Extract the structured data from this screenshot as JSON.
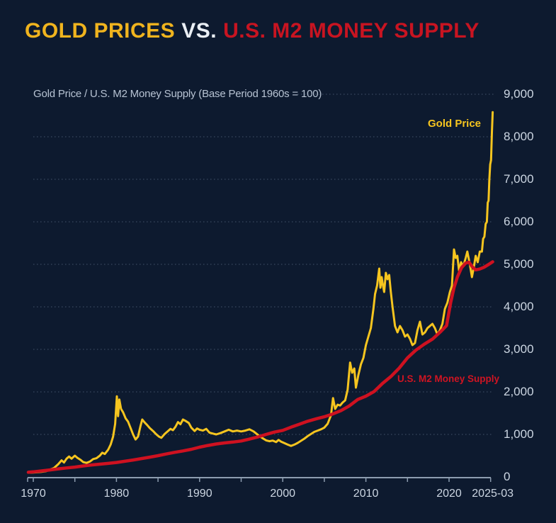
{
  "header": {
    "title_gold": "GOLD PRICES",
    "title_vs": "VS.",
    "title_m2": "U.S. M2 MONEY SUPPLY"
  },
  "colors": {
    "background": "#0d1a2f",
    "title_gold": "#f0b41e",
    "title_vs": "#e9eef4",
    "title_red": "#c81421",
    "gold_line": "#f6c51f",
    "m2_line": "#ce1120",
    "gridline": "#44546b",
    "axis": "#8d9db0",
    "tick_label": "#ccd6e2",
    "subtitle_text": "#b7c3d3"
  },
  "chart_data": {
    "type": "line",
    "title": "GOLD PRICES VS. U.S. M2 MONEY SUPPLY",
    "subtitle": "Gold Price / U.S. M2 Money Supply (Base Period 1960s = 100)",
    "xlim": [
      1969.3,
      2025.3
    ],
    "ylim": [
      0,
      9000
    ],
    "grid": "horizontal dotted",
    "legend": "inline labels near lines",
    "y_ticks": [
      0,
      1000,
      2000,
      3000,
      4000,
      5000,
      6000,
      7000,
      8000,
      9000
    ],
    "x_minor_tick_years": [
      1970,
      1975,
      1980,
      1985,
      1990,
      1995,
      2000,
      2005,
      2010,
      2015,
      2020,
      2025
    ],
    "x_tick_labels": [
      {
        "x": 1970,
        "label": "1970"
      },
      {
        "x": 1980,
        "label": "1980"
      },
      {
        "x": 1990,
        "label": "1990"
      },
      {
        "x": 2000,
        "label": "2000"
      },
      {
        "x": 2010,
        "label": "2010"
      },
      {
        "x": 2020,
        "label": "2020"
      },
      {
        "x": 2025.25,
        "label": "2025-03"
      }
    ],
    "series": [
      {
        "name": "Gold Price",
        "color": "#f6c51f",
        "points": [
          [
            1969.4,
            100
          ],
          [
            1970,
            105
          ],
          [
            1970.5,
            112
          ],
          [
            1971,
            120
          ],
          [
            1971.5,
            135
          ],
          [
            1972,
            170
          ],
          [
            1972.5,
            210
          ],
          [
            1973,
            300
          ],
          [
            1973.4,
            390
          ],
          [
            1973.7,
            340
          ],
          [
            1974,
            430
          ],
          [
            1974.3,
            480
          ],
          [
            1974.6,
            430
          ],
          [
            1975,
            500
          ],
          [
            1975.3,
            450
          ],
          [
            1975.7,
            400
          ],
          [
            1976,
            350
          ],
          [
            1976.4,
            330
          ],
          [
            1976.8,
            360
          ],
          [
            1977.2,
            420
          ],
          [
            1977.6,
            440
          ],
          [
            1978,
            500
          ],
          [
            1978.3,
            570
          ],
          [
            1978.6,
            540
          ],
          [
            1979,
            640
          ],
          [
            1979.3,
            760
          ],
          [
            1979.6,
            950
          ],
          [
            1979.85,
            1250
          ],
          [
            1980.05,
            1895
          ],
          [
            1980.2,
            1430
          ],
          [
            1980.35,
            1820
          ],
          [
            1980.55,
            1600
          ],
          [
            1980.8,
            1520
          ],
          [
            1981.1,
            1380
          ],
          [
            1981.4,
            1300
          ],
          [
            1981.7,
            1150
          ],
          [
            1982,
            1000
          ],
          [
            1982.3,
            880
          ],
          [
            1982.6,
            950
          ],
          [
            1982.9,
            1200
          ],
          [
            1983.1,
            1350
          ],
          [
            1983.4,
            1280
          ],
          [
            1983.7,
            1220
          ],
          [
            1984,
            1150
          ],
          [
            1984.4,
            1080
          ],
          [
            1984.8,
            1000
          ],
          [
            1985.1,
            950
          ],
          [
            1985.4,
            920
          ],
          [
            1985.8,
            1010
          ],
          [
            1986.2,
            1080
          ],
          [
            1986.5,
            1130
          ],
          [
            1986.8,
            1100
          ],
          [
            1987.1,
            1180
          ],
          [
            1987.4,
            1290
          ],
          [
            1987.7,
            1240
          ],
          [
            1988,
            1350
          ],
          [
            1988.3,
            1320
          ],
          [
            1988.7,
            1270
          ],
          [
            1989,
            1160
          ],
          [
            1989.4,
            1080
          ],
          [
            1989.7,
            1140
          ],
          [
            1990,
            1110
          ],
          [
            1990.4,
            1090
          ],
          [
            1990.8,
            1130
          ],
          [
            1991.2,
            1040
          ],
          [
            1991.6,
            1020
          ],
          [
            1992,
            1000
          ],
          [
            1992.5,
            1030
          ],
          [
            1993,
            1070
          ],
          [
            1993.5,
            1110
          ],
          [
            1994,
            1070
          ],
          [
            1994.5,
            1090
          ],
          [
            1995,
            1070
          ],
          [
            1995.5,
            1090
          ],
          [
            1996,
            1120
          ],
          [
            1996.5,
            1070
          ],
          [
            1997,
            990
          ],
          [
            1997.5,
            920
          ],
          [
            1998,
            860
          ],
          [
            1998.4,
            840
          ],
          [
            1998.8,
            855
          ],
          [
            1999.2,
            820
          ],
          [
            1999.5,
            870
          ],
          [
            1999.8,
            830
          ],
          [
            2000.2,
            795
          ],
          [
            2000.6,
            760
          ],
          [
            2001,
            730
          ],
          [
            2001.4,
            760
          ],
          [
            2001.8,
            800
          ],
          [
            2002.2,
            850
          ],
          [
            2002.6,
            900
          ],
          [
            2003,
            960
          ],
          [
            2003.4,
            1010
          ],
          [
            2003.8,
            1060
          ],
          [
            2004.2,
            1090
          ],
          [
            2004.6,
            1120
          ],
          [
            2005,
            1160
          ],
          [
            2005.4,
            1250
          ],
          [
            2005.8,
            1450
          ],
          [
            2006.05,
            1855
          ],
          [
            2006.3,
            1600
          ],
          [
            2006.6,
            1700
          ],
          [
            2006.9,
            1680
          ],
          [
            2007.2,
            1750
          ],
          [
            2007.5,
            1800
          ],
          [
            2007.8,
            2050
          ],
          [
            2008.1,
            2690
          ],
          [
            2008.35,
            2450
          ],
          [
            2008.6,
            2550
          ],
          [
            2008.8,
            2100
          ],
          [
            2009.1,
            2400
          ],
          [
            2009.4,
            2650
          ],
          [
            2009.7,
            2800
          ],
          [
            2010,
            3100
          ],
          [
            2010.3,
            3300
          ],
          [
            2010.6,
            3500
          ],
          [
            2010.9,
            3950
          ],
          [
            2011.1,
            4300
          ],
          [
            2011.35,
            4500
          ],
          [
            2011.6,
            4900
          ],
          [
            2011.75,
            4450
          ],
          [
            2011.9,
            4700
          ],
          [
            2012.05,
            4500
          ],
          [
            2012.2,
            4350
          ],
          [
            2012.4,
            4800
          ],
          [
            2012.6,
            4650
          ],
          [
            2012.8,
            4750
          ],
          [
            2013,
            4350
          ],
          [
            2013.2,
            4000
          ],
          [
            2013.5,
            3550
          ],
          [
            2013.8,
            3400
          ],
          [
            2014.1,
            3550
          ],
          [
            2014.4,
            3450
          ],
          [
            2014.7,
            3300
          ],
          [
            2015,
            3350
          ],
          [
            2015.3,
            3250
          ],
          [
            2015.6,
            3100
          ],
          [
            2015.9,
            3150
          ],
          [
            2016.2,
            3450
          ],
          [
            2016.5,
            3650
          ],
          [
            2016.8,
            3350
          ],
          [
            2017.1,
            3400
          ],
          [
            2017.4,
            3500
          ],
          [
            2017.7,
            3550
          ],
          [
            2018,
            3600
          ],
          [
            2018.3,
            3500
          ],
          [
            2018.6,
            3350
          ],
          [
            2018.9,
            3450
          ],
          [
            2019.2,
            3600
          ],
          [
            2019.5,
            3950
          ],
          [
            2019.8,
            4100
          ],
          [
            2020.1,
            4350
          ],
          [
            2020.35,
            4500
          ],
          [
            2020.6,
            5350
          ],
          [
            2020.8,
            5150
          ],
          [
            2021,
            5200
          ],
          [
            2021.2,
            4850
          ],
          [
            2021.45,
            5050
          ],
          [
            2021.7,
            4950
          ],
          [
            2022,
            5150
          ],
          [
            2022.2,
            5300
          ],
          [
            2022.5,
            5000
          ],
          [
            2022.75,
            4700
          ],
          [
            2023,
            4950
          ],
          [
            2023.2,
            5200
          ],
          [
            2023.45,
            5050
          ],
          [
            2023.7,
            5300
          ],
          [
            2023.95,
            5300
          ],
          [
            2024.1,
            5600
          ],
          [
            2024.25,
            5650
          ],
          [
            2024.4,
            5950
          ],
          [
            2024.55,
            6000
          ],
          [
            2024.65,
            6450
          ],
          [
            2024.75,
            6500
          ],
          [
            2024.85,
            7000
          ],
          [
            2024.95,
            7350
          ],
          [
            2025.05,
            7450
          ],
          [
            2025.15,
            8100
          ],
          [
            2025.25,
            8580
          ]
        ]
      },
      {
        "name": "U.S. M2 Money Supply",
        "color": "#ce1120",
        "points": [
          [
            1969.4,
            110
          ],
          [
            1970,
            120
          ],
          [
            1971,
            142
          ],
          [
            1972,
            165
          ],
          [
            1973,
            190
          ],
          [
            1974,
            212
          ],
          [
            1975,
            232
          ],
          [
            1976,
            258
          ],
          [
            1977,
            282
          ],
          [
            1978,
            300
          ],
          [
            1979,
            318
          ],
          [
            1980,
            340
          ],
          [
            1981,
            368
          ],
          [
            1982,
            398
          ],
          [
            1983,
            432
          ],
          [
            1984,
            465
          ],
          [
            1985,
            500
          ],
          [
            1986,
            540
          ],
          [
            1987,
            578
          ],
          [
            1988,
            612
          ],
          [
            1989,
            650
          ],
          [
            1990,
            700
          ],
          [
            1991,
            740
          ],
          [
            1992,
            775
          ],
          [
            1993,
            800
          ],
          [
            1994,
            820
          ],
          [
            1995,
            845
          ],
          [
            1996,
            890
          ],
          [
            1997,
            940
          ],
          [
            1998,
            1000
          ],
          [
            1999,
            1055
          ],
          [
            2000,
            1095
          ],
          [
            2001,
            1170
          ],
          [
            2002,
            1240
          ],
          [
            2003,
            1310
          ],
          [
            2004,
            1365
          ],
          [
            2005,
            1415
          ],
          [
            2006,
            1480
          ],
          [
            2007,
            1560
          ],
          [
            2008,
            1670
          ],
          [
            2009,
            1820
          ],
          [
            2010,
            1900
          ],
          [
            2011,
            2010
          ],
          [
            2012,
            2200
          ],
          [
            2013,
            2360
          ],
          [
            2014,
            2560
          ],
          [
            2015,
            2800
          ],
          [
            2016,
            2980
          ],
          [
            2017,
            3120
          ],
          [
            2018,
            3240
          ],
          [
            2019,
            3420
          ],
          [
            2019.7,
            3560
          ],
          [
            2020.2,
            4100
          ],
          [
            2020.6,
            4450
          ],
          [
            2021,
            4700
          ],
          [
            2021.5,
            4920
          ],
          [
            2022,
            5030
          ],
          [
            2022.4,
            5050
          ],
          [
            2022.8,
            4940
          ],
          [
            2023.2,
            4870
          ],
          [
            2023.7,
            4890
          ],
          [
            2024.2,
            4930
          ],
          [
            2024.7,
            4990
          ],
          [
            2025.25,
            5060
          ]
        ]
      }
    ]
  }
}
